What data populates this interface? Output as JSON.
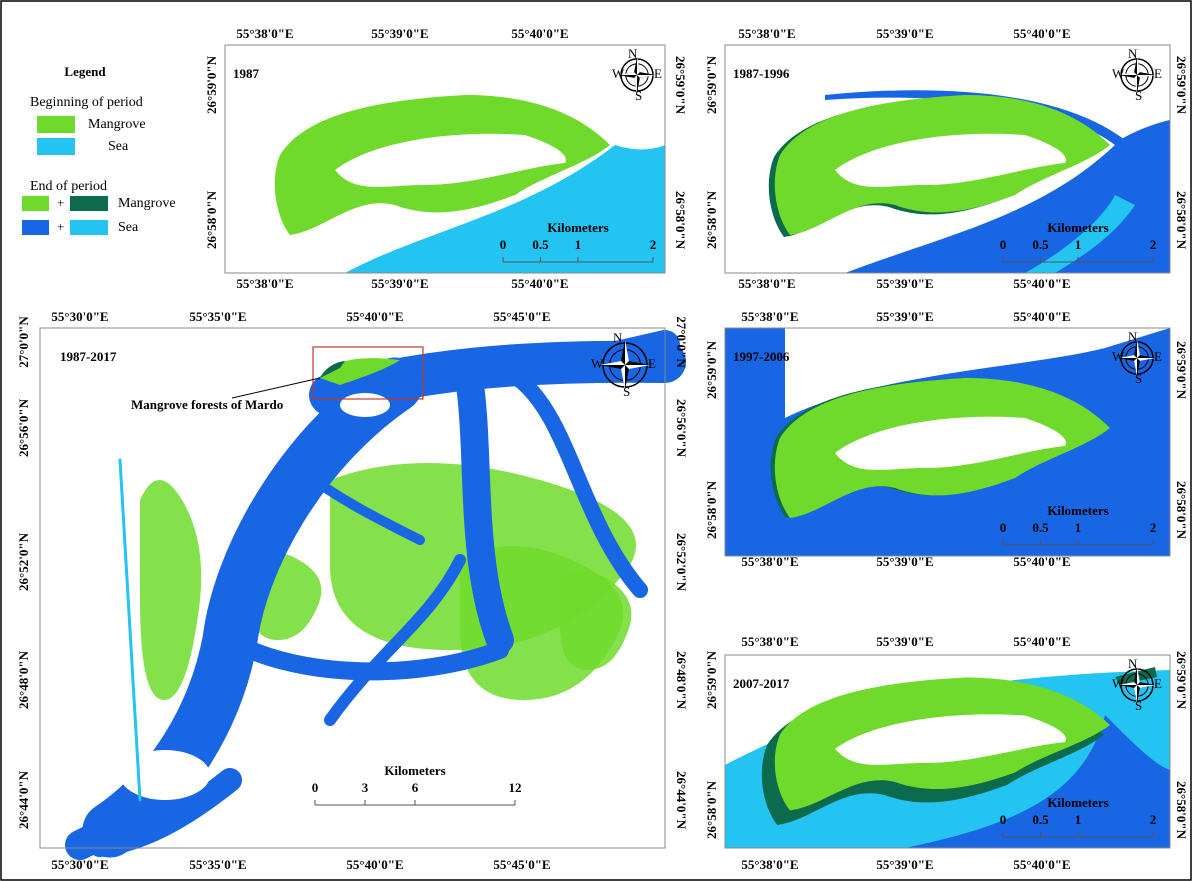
{
  "legend": {
    "title": "Legend",
    "beginning": {
      "title": "Beginning of period",
      "items": [
        "Mangrove",
        "Sea"
      ]
    },
    "end": {
      "title": "End of period",
      "plus": "+",
      "items": [
        "Mangrove",
        "Sea"
      ]
    }
  },
  "compass": {
    "n": "N",
    "e": "E",
    "s": "S",
    "w": "W"
  },
  "annotation": "Mangrove forests of Mardo",
  "panels": [
    {
      "title": "1987",
      "top_labels": [
        "55°38'0\"E",
        "55°39'0\"E",
        "55°40'0\"E"
      ],
      "bottom_labels": [
        "55°38'0\"E",
        "55°39'0\"E",
        "55°40'0\"E"
      ],
      "left_labels": [
        "26°59'0\"N",
        "26°58'0\"N"
      ],
      "right_labels": [
        "26°59'0\"N",
        "26°58'0\"N"
      ],
      "scale": {
        "title": "Kilometers",
        "ticks": [
          0,
          0.5,
          1,
          2
        ]
      }
    },
    {
      "title": "1987-1996",
      "top_labels": [
        "55°38'0\"E",
        "55°39'0\"E",
        "55°40'0\"E"
      ],
      "bottom_labels": [
        "55°38'0\"E",
        "55°39'0\"E",
        "55°40'0\"E"
      ],
      "left_labels": [
        "26°59'0\"N",
        "26°58'0\"N"
      ],
      "right_labels": [
        "26°59'0\"N",
        "26°58'0\"N"
      ],
      "scale": {
        "title": "Kilometers",
        "ticks": [
          0,
          0.5,
          1,
          2
        ]
      }
    },
    {
      "title": "1987-2017",
      "top_labels": [
        "55°30'0\"E",
        "55°35'0\"E",
        "55°40'0\"E",
        "55°45'0\"E"
      ],
      "bottom_labels": [
        "55°30'0\"E",
        "55°35'0\"E",
        "55°40'0\"E",
        "55°45'0\"E"
      ],
      "left_labels": [
        "27°0'0\"N",
        "26°56'0\"N",
        "26°52'0\"N",
        "26°48'0\"N",
        "26°44'0\"N"
      ],
      "right_labels": [
        "27°0'0\"N",
        "26°56'0\"N",
        "26°52'0\"N",
        "26°48'0\"N",
        "26°44'0\"N"
      ],
      "scale": {
        "title": "Kilometers",
        "ticks": [
          0,
          3,
          6,
          12
        ]
      }
    },
    {
      "title": "1997-2006",
      "top_labels": [
        "55°38'0\"E",
        "55°39'0\"E",
        "55°40'0\"E"
      ],
      "bottom_labels": [
        "55°38'0\"E",
        "55°39'0\"E",
        "55°40'0\"E"
      ],
      "left_labels": [
        "26°59'0\"N",
        "26°58'0\"N"
      ],
      "right_labels": [
        "26°59'0\"N",
        "26°58'0\"N"
      ],
      "scale": {
        "title": "Kilometers",
        "ticks": [
          0,
          0.5,
          1,
          2
        ]
      }
    },
    {
      "title": "2007-2017",
      "top_labels": [
        "55°38'0\"E",
        "55°39'0\"E",
        "55°40'0\"E"
      ],
      "bottom_labels": [
        "55°38'0\"E",
        "55°39'0\"E",
        "55°40'0\"E"
      ],
      "left_labels": [
        "26°59'0\"N",
        "26°58'0\"N"
      ],
      "right_labels": [
        "26°59'0\"N",
        "26°58'0\"N"
      ],
      "scale": {
        "title": "Kilometers",
        "ticks": [
          0,
          0.5,
          1,
          2
        ]
      }
    }
  ]
}
